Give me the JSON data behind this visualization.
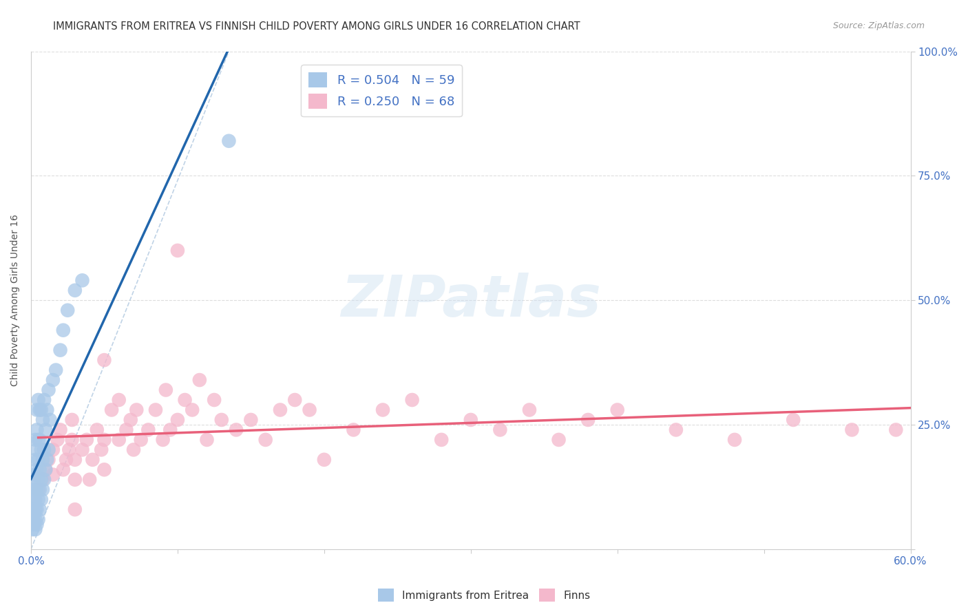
{
  "title": "IMMIGRANTS FROM ERITREA VS FINNISH CHILD POVERTY AMONG GIRLS UNDER 16 CORRELATION CHART",
  "source": "Source: ZipAtlas.com",
  "ylabel": "Child Poverty Among Girls Under 16",
  "legend1_label": "R = 0.504   N = 59",
  "legend2_label": "R = 0.250   N = 68",
  "legend_bottom_label1": "Immigrants from Eritrea",
  "legend_bottom_label2": "Finns",
  "blue_color": "#a8c8e8",
  "pink_color": "#f4b8cc",
  "blue_line_color": "#2166ac",
  "pink_line_color": "#e8607a",
  "blue_scatter_x": [
    0.001,
    0.001,
    0.001,
    0.002,
    0.002,
    0.002,
    0.002,
    0.002,
    0.003,
    0.003,
    0.003,
    0.003,
    0.003,
    0.003,
    0.003,
    0.003,
    0.004,
    0.004,
    0.004,
    0.004,
    0.004,
    0.004,
    0.004,
    0.005,
    0.005,
    0.005,
    0.005,
    0.005,
    0.005,
    0.006,
    0.006,
    0.006,
    0.006,
    0.006,
    0.007,
    0.007,
    0.007,
    0.007,
    0.008,
    0.008,
    0.008,
    0.009,
    0.009,
    0.009,
    0.01,
    0.01,
    0.011,
    0.011,
    0.012,
    0.012,
    0.013,
    0.015,
    0.017,
    0.02,
    0.022,
    0.025,
    0.03,
    0.035,
    0.135
  ],
  "blue_scatter_y": [
    0.04,
    0.06,
    0.08,
    0.05,
    0.07,
    0.1,
    0.12,
    0.14,
    0.04,
    0.06,
    0.08,
    0.1,
    0.12,
    0.15,
    0.18,
    0.22,
    0.05,
    0.08,
    0.12,
    0.16,
    0.2,
    0.24,
    0.28,
    0.06,
    0.1,
    0.14,
    0.18,
    0.22,
    0.3,
    0.08,
    0.12,
    0.16,
    0.22,
    0.28,
    0.1,
    0.14,
    0.2,
    0.28,
    0.12,
    0.18,
    0.26,
    0.14,
    0.2,
    0.3,
    0.16,
    0.24,
    0.18,
    0.28,
    0.2,
    0.32,
    0.26,
    0.34,
    0.36,
    0.4,
    0.44,
    0.48,
    0.52,
    0.54,
    0.82
  ],
  "pink_scatter_x": [
    0.005,
    0.008,
    0.01,
    0.012,
    0.015,
    0.015,
    0.018,
    0.02,
    0.022,
    0.024,
    0.026,
    0.028,
    0.028,
    0.03,
    0.03,
    0.035,
    0.038,
    0.04,
    0.042,
    0.045,
    0.048,
    0.05,
    0.05,
    0.055,
    0.06,
    0.06,
    0.065,
    0.068,
    0.07,
    0.072,
    0.075,
    0.08,
    0.085,
    0.09,
    0.092,
    0.095,
    0.1,
    0.105,
    0.11,
    0.115,
    0.12,
    0.125,
    0.13,
    0.14,
    0.15,
    0.16,
    0.17,
    0.18,
    0.19,
    0.2,
    0.22,
    0.24,
    0.26,
    0.28,
    0.3,
    0.32,
    0.34,
    0.36,
    0.38,
    0.4,
    0.44,
    0.48,
    0.52,
    0.56,
    0.59,
    0.03,
    0.05,
    0.1
  ],
  "pink_scatter_y": [
    0.12,
    0.14,
    0.16,
    0.18,
    0.15,
    0.2,
    0.22,
    0.24,
    0.16,
    0.18,
    0.2,
    0.22,
    0.26,
    0.14,
    0.18,
    0.2,
    0.22,
    0.14,
    0.18,
    0.24,
    0.2,
    0.16,
    0.22,
    0.28,
    0.22,
    0.3,
    0.24,
    0.26,
    0.2,
    0.28,
    0.22,
    0.24,
    0.28,
    0.22,
    0.32,
    0.24,
    0.26,
    0.3,
    0.28,
    0.34,
    0.22,
    0.3,
    0.26,
    0.24,
    0.26,
    0.22,
    0.28,
    0.3,
    0.28,
    0.18,
    0.24,
    0.28,
    0.3,
    0.22,
    0.26,
    0.24,
    0.28,
    0.22,
    0.26,
    0.28,
    0.24,
    0.22,
    0.26,
    0.24,
    0.24,
    0.08,
    0.38,
    0.6
  ],
  "xlim": [
    0.0,
    0.6
  ],
  "ylim": [
    0.0,
    1.0
  ],
  "xticks": [
    0.0,
    0.1,
    0.2,
    0.3,
    0.4,
    0.5,
    0.6
  ],
  "yticks": [
    0.0,
    0.25,
    0.5,
    0.75,
    1.0
  ],
  "right_ytick_labels": [
    "",
    "25.0%",
    "50.0%",
    "75.0%",
    "100.0%"
  ],
  "watermark_text": "ZIPatlas",
  "title_color": "#333333",
  "source_color": "#999999",
  "tick_color": "#4472c4",
  "grid_color": "#dddddd",
  "spine_color": "#cccccc"
}
